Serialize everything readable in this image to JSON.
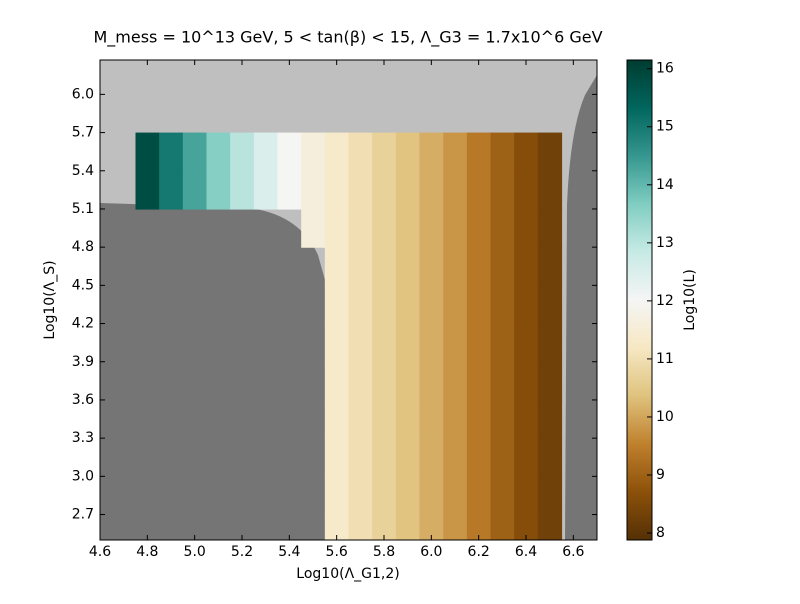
{
  "chart_data": {
    "type": "heatmap",
    "title": "M_mess = 10^13 GeV, 5 < tan(β) < 15, Λ_G3 = 1.7x10^6 GeV",
    "xlabel": "Log10(Λ_G1,2)",
    "ylabel": "Log10(Λ_S)",
    "colorbar_label": "Log10(L)",
    "x": [
      4.8,
      4.9,
      5.0,
      5.1,
      5.2,
      5.3,
      5.4,
      5.5,
      5.6,
      5.7,
      5.8,
      5.9,
      6.0,
      6.1,
      6.2,
      6.3,
      6.4,
      6.5
    ],
    "y": [
      2.55,
      2.85,
      3.15,
      3.45,
      3.75,
      4.05,
      4.35,
      4.65,
      4.95,
      5.25,
      5.55
    ],
    "z": [
      [
        null,
        null,
        null,
        null,
        null,
        null,
        null,
        null,
        11.3,
        11,
        10.7,
        10.4,
        10.1,
        9.8,
        9.4,
        9.0,
        8.6,
        8.3
      ],
      [
        null,
        null,
        null,
        null,
        null,
        null,
        null,
        null,
        11.3,
        11,
        10.7,
        10.4,
        10.1,
        9.8,
        9.4,
        9.0,
        8.6,
        8.3
      ],
      [
        null,
        null,
        null,
        null,
        null,
        null,
        null,
        null,
        11.3,
        11,
        10.7,
        10.4,
        10.1,
        9.8,
        9.4,
        9.0,
        8.6,
        8.3
      ],
      [
        null,
        null,
        null,
        null,
        null,
        null,
        null,
        null,
        11.3,
        11,
        10.7,
        10.4,
        10.1,
        9.8,
        9.4,
        9.0,
        8.6,
        8.3
      ],
      [
        null,
        null,
        null,
        null,
        null,
        null,
        null,
        null,
        11.3,
        11,
        10.7,
        10.4,
        10.1,
        9.8,
        9.4,
        9.0,
        8.6,
        8.3
      ],
      [
        null,
        null,
        null,
        null,
        null,
        null,
        null,
        null,
        11.3,
        11,
        10.7,
        10.4,
        10.1,
        9.8,
        9.4,
        9.0,
        8.6,
        8.3
      ],
      [
        null,
        null,
        null,
        null,
        null,
        null,
        null,
        null,
        11.3,
        11,
        10.7,
        10.4,
        10.1,
        9.8,
        9.4,
        9.0,
        8.6,
        8.3
      ],
      [
        null,
        null,
        null,
        null,
        null,
        null,
        null,
        null,
        11.3,
        11,
        10.7,
        10.4,
        10.1,
        9.8,
        9.4,
        9.0,
        8.6,
        8.3
      ],
      [
        null,
        null,
        null,
        null,
        null,
        null,
        null,
        11.6,
        11.3,
        11,
        10.7,
        10.4,
        10.1,
        9.8,
        9.4,
        9.0,
        8.6,
        8.3
      ],
      [
        15.8,
        15,
        14.3,
        13.6,
        13,
        12.5,
        12,
        11.6,
        11.3,
        11,
        10.7,
        10.4,
        10.1,
        9.8,
        9.4,
        9.0,
        8.6,
        8.3
      ],
      [
        15.8,
        15,
        14.3,
        13.6,
        13,
        12.5,
        12,
        11.6,
        11.3,
        11,
        10.7,
        10.4,
        10.1,
        9.8,
        9.4,
        9.0,
        8.6,
        8.3
      ]
    ],
    "colormap": [
      "#543005",
      "#8c510a",
      "#bf812d",
      "#dfc27d",
      "#f6e8c3",
      "#f5f5f5",
      "#c7eae5",
      "#80cdc1",
      "#35978f",
      "#01665e",
      "#003c30"
    ],
    "xlim": [
      4.6,
      6.7
    ],
    "xticks": [
      4.6,
      4.8,
      {
        "value": 5.0,
        "label": "5.0"
      },
      5.2,
      5.4,
      5.6,
      5.8,
      {
        "value": 6.0,
        "label": "6.0"
      },
      6.2,
      6.4,
      6.6
    ],
    "ylim": [
      2.5,
      6.27
    ],
    "yticks": [
      2.7,
      {
        "value": 3.0,
        "label": "3.0"
      },
      3.3,
      3.6,
      3.9,
      4.2,
      4.5,
      4.8,
      5.1,
      5.4,
      5.7,
      {
        "value": 6.0,
        "label": "6.0"
      }
    ],
    "clim": [
      7.88,
      16.15
    ],
    "cticks": [
      8,
      9,
      10,
      11,
      12,
      13,
      14,
      15,
      16
    ]
  }
}
